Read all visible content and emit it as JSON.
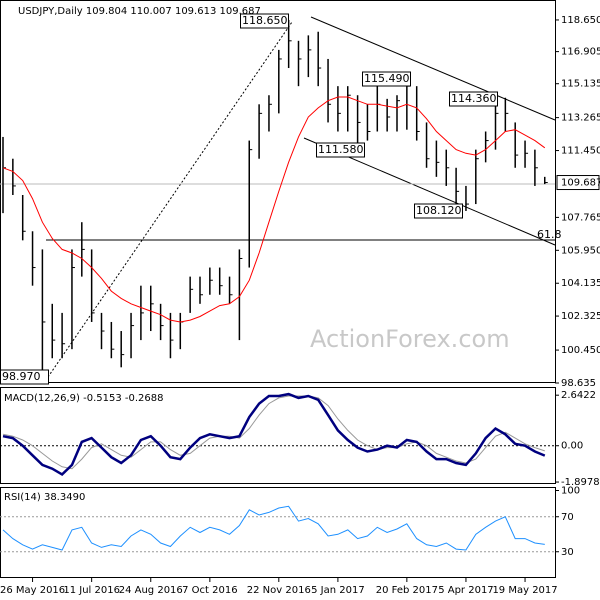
{
  "chart_data": [
    {
      "type": "ohlc",
      "title": "USDJPY,Daily 109.804 110.007 109.613 109.687",
      "ylim": [
        98.635,
        119.75
      ],
      "yticks": [
        {
          "value": 118.65,
          "label": "118.650"
        },
        116.905,
        115.135,
        113.265,
        {
          "value": 111.45,
          "label": "111.450"
        },
        107.765,
        {
          "value": 105.95,
          "label": "105.950"
        },
        104.135,
        102.325,
        {
          "value": 100.45,
          "label": "100.450"
        },
        98.635
      ],
      "color": "#000000",
      "high": [
        112.2,
        111.0,
        109.0,
        107.0,
        106.0,
        103.0,
        102.5,
        106.0,
        107.5,
        106.0,
        102.5,
        102.0,
        101.5,
        102.5,
        104.0,
        104.0,
        103.0,
        102.5,
        102.5,
        104.5,
        104.5,
        105.0,
        105.0,
        104.5,
        106.0,
        112.0,
        114.0,
        114.5,
        117.0,
        118.65,
        117.5,
        117.8,
        118.0,
        116.5,
        115.0,
        115.0,
        114.5,
        114.0,
        115.3,
        114.3,
        114.5,
        115.49,
        115.0,
        113.0,
        112.0,
        111.5,
        110.5,
        109.5,
        111.5,
        112.5,
        114.0,
        114.36,
        113.0,
        112.0,
        111.5,
        110.0
      ],
      "low": [
        108.0,
        109.0,
        106.5,
        104.0,
        98.97,
        100.0,
        100.0,
        100.5,
        104.5,
        102.0,
        100.5,
        100.0,
        99.5,
        100.0,
        101.0,
        101.5,
        101.0,
        100.0,
        100.5,
        102.5,
        103.0,
        103.5,
        103.5,
        103.0,
        101.0,
        105.0,
        111.0,
        112.5,
        113.5,
        116.0,
        115.0,
        115.5,
        115.0,
        113.0,
        112.5,
        112.5,
        111.58,
        112.0,
        112.5,
        112.5,
        112.5,
        112.6,
        112.0,
        110.5,
        110.0,
        109.5,
        108.5,
        108.12,
        108.5,
        110.8,
        111.5,
        112.5,
        110.5,
        110.5,
        109.5,
        109.6
      ],
      "close": [
        110.5,
        109.5,
        107.0,
        105.0,
        102.0,
        101.0,
        100.8,
        105.0,
        106.0,
        102.5,
        101.5,
        100.5,
        100.2,
        101.8,
        102.5,
        103.0,
        101.8,
        101.0,
        102.0,
        103.8,
        103.5,
        104.3,
        104.0,
        103.5,
        105.5,
        111.5,
        113.5,
        114.0,
        116.5,
        117.5,
        116.5,
        117.0,
        116.0,
        114.0,
        113.5,
        114.5,
        113.0,
        112.5,
        114.0,
        113.3,
        114.2,
        115.0,
        112.5,
        111.0,
        110.8,
        110.5,
        109.2,
        108.5,
        111.0,
        112.0,
        113.5,
        113.5,
        111.2,
        111.3,
        110.5,
        109.687
      ],
      "ma": {
        "color": "#ff0000",
        "values": [
          110.5,
          110.3,
          109.8,
          108.8,
          107.5,
          106.6,
          106.0,
          105.8,
          105.5,
          105.0,
          104.4,
          103.7,
          103.3,
          103.0,
          102.8,
          102.6,
          102.4,
          102.1,
          102.0,
          102.1,
          102.3,
          102.6,
          102.9,
          103.0,
          103.4,
          104.3,
          105.8,
          107.5,
          109.2,
          110.8,
          112.2,
          113.3,
          113.8,
          114.2,
          114.4,
          114.4,
          114.2,
          114.0,
          114.0,
          113.9,
          113.8,
          114.0,
          113.8,
          113.2,
          112.5,
          112.0,
          111.5,
          111.3,
          111.2,
          111.5,
          112.0,
          112.5,
          112.6,
          112.3,
          112.0,
          111.6
        ]
      },
      "annotations": [
        "118.650",
        "115.490",
        "114.360",
        "111.580",
        "108.120",
        "98.970",
        "61.8",
        "ActionForex.com"
      ]
    },
    {
      "type": "line",
      "title": "MACD(12,26,9) -0.5153 -0.2688",
      "ylim": [
        -2.0,
        3.07
      ],
      "yticks": [
        2.6422,
        {
          "value": 0,
          "label": "0.00"
        },
        -1.8978
      ],
      "series": [
        {
          "color": "#00007f",
          "values": [
            0.5,
            0.4,
            0.0,
            -0.5,
            -1.0,
            -1.2,
            -1.5,
            -1.0,
            0.2,
            0.4,
            -0.1,
            -0.6,
            -0.9,
            -0.5,
            0.3,
            0.5,
            0.0,
            -0.6,
            -0.7,
            -0.1,
            0.4,
            0.6,
            0.5,
            0.4,
            0.5,
            1.5,
            2.2,
            2.6,
            2.6,
            2.7,
            2.5,
            2.6,
            2.4,
            1.6,
            0.8,
            0.3,
            -0.1,
            -0.3,
            -0.2,
            0.0,
            -0.1,
            0.3,
            0.2,
            -0.3,
            -0.7,
            -0.7,
            -0.9,
            -1.0,
            -0.4,
            0.4,
            0.9,
            0.6,
            0.1,
            0.0,
            -0.3,
            -0.5153
          ]
        },
        {
          "color": "#999999",
          "values": [
            0.6,
            0.5,
            0.3,
            0.0,
            -0.4,
            -0.8,
            -1.1,
            -1.2,
            -0.7,
            -0.1,
            0.1,
            -0.2,
            -0.5,
            -0.6,
            -0.2,
            0.2,
            0.2,
            -0.2,
            -0.5,
            -0.4,
            0.0,
            0.4,
            0.5,
            0.5,
            0.4,
            0.9,
            1.6,
            2.2,
            2.5,
            2.6,
            2.6,
            2.6,
            2.5,
            2.1,
            1.4,
            0.8,
            0.3,
            0.0,
            -0.2,
            -0.1,
            -0.1,
            0.1,
            0.2,
            0.0,
            -0.4,
            -0.6,
            -0.8,
            -0.9,
            -0.7,
            -0.1,
            0.5,
            0.7,
            0.4,
            0.1,
            -0.1,
            -0.2688
          ]
        }
      ],
      "zero_line": 0
    },
    {
      "type": "line",
      "title": "RSI(14) 38.3490",
      "ylim": [
        0,
        104
      ],
      "yticks": [
        100,
        70,
        30
      ],
      "levels": [
        70,
        30
      ],
      "categories": [
        null,
        null,
        null,
        "26 May 2016",
        null,
        null,
        null,
        null,
        null,
        "11 Jul 2016",
        null,
        null,
        null,
        null,
        null,
        "24 Aug 2016",
        null,
        null,
        null,
        null,
        null,
        "7 Oct 2016",
        null,
        null,
        null,
        null,
        null,
        null,
        "22 Nov 2016",
        null,
        null,
        null,
        null,
        null,
        "5 Jan 2017",
        null,
        null,
        null,
        null,
        null,
        null,
        "20 Feb 2017",
        null,
        null,
        null,
        null,
        null,
        "5 Apr 2017",
        null,
        null,
        null,
        null,
        null,
        "19 May 2017",
        null,
        null
      ],
      "series": [
        {
          "color": "#1e90ff",
          "values": [
            55,
            45,
            38,
            33,
            38,
            35,
            32,
            55,
            58,
            40,
            35,
            38,
            36,
            48,
            55,
            50,
            40,
            36,
            48,
            58,
            52,
            58,
            55,
            50,
            60,
            78,
            72,
            75,
            80,
            82,
            65,
            68,
            62,
            48,
            50,
            55,
            45,
            48,
            58,
            52,
            56,
            62,
            45,
            38,
            36,
            40,
            33,
            32,
            50,
            58,
            65,
            70,
            45,
            45,
            40,
            38.349
          ]
        }
      ]
    }
  ]
}
